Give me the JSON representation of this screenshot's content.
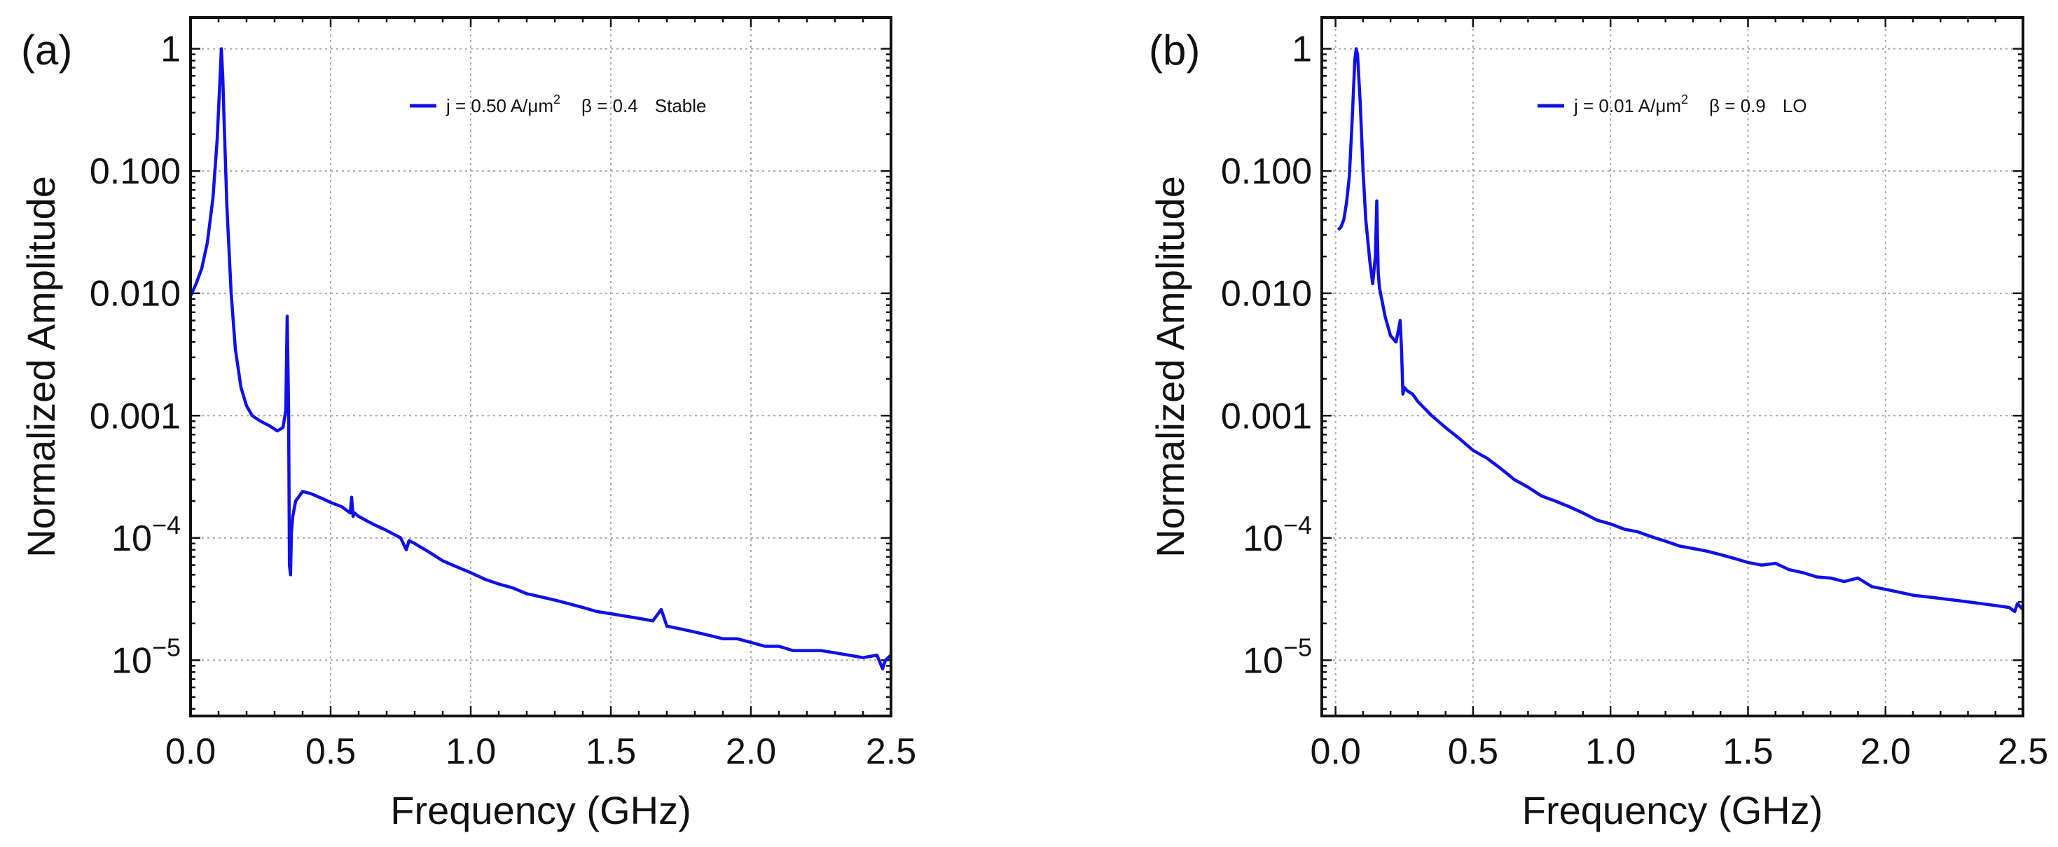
{
  "chart_data": [
    {
      "type": "line",
      "panel_label": "(a)",
      "xlabel": "Frequency (GHz)",
      "ylabel": "Normalized Amplitude",
      "xlim": [
        0,
        2.5
      ],
      "ylim": [
        3.5e-06,
        1.8
      ],
      "yscale": "log",
      "grid": true,
      "xticks": [
        0.0,
        0.5,
        1.0,
        1.5,
        2.0,
        2.5
      ],
      "xtick_labels": [
        "0.0",
        "0.5",
        "1.0",
        "1.5",
        "2.0",
        "2.5"
      ],
      "yticks": [
        1,
        0.1,
        0.01,
        0.001,
        0.0001,
        1e-05
      ],
      "ytick_labels": [
        "1",
        "0.100",
        "0.010",
        "0.001",
        "10^-4",
        "10^-5"
      ],
      "legend": {
        "position": "top-right",
        "label_main": "j = 0.50  A/μm",
        "label_sup": "2",
        "label_beta": "β = 0.4",
        "label_state": "Stable"
      },
      "series": [
        {
          "name": "j = 0.50 A/μm² β = 0.4 Stable",
          "color": "#1010e8",
          "x": [
            0.0,
            0.02,
            0.04,
            0.06,
            0.08,
            0.095,
            0.105,
            0.11,
            0.115,
            0.12,
            0.13,
            0.145,
            0.16,
            0.18,
            0.2,
            0.22,
            0.25,
            0.28,
            0.31,
            0.33,
            0.34,
            0.345,
            0.35,
            0.353,
            0.357,
            0.36,
            0.365,
            0.375,
            0.4,
            0.43,
            0.47,
            0.5,
            0.54,
            0.57,
            0.575,
            0.58,
            0.585,
            0.6,
            0.65,
            0.7,
            0.75,
            0.77,
            0.78,
            0.8,
            0.85,
            0.9,
            0.95,
            1.0,
            1.05,
            1.1,
            1.15,
            1.2,
            1.25,
            1.3,
            1.35,
            1.4,
            1.45,
            1.5,
            1.55,
            1.6,
            1.65,
            1.68,
            1.7,
            1.75,
            1.8,
            1.85,
            1.9,
            1.95,
            2.0,
            2.05,
            2.1,
            2.15,
            2.2,
            2.25,
            2.3,
            2.35,
            2.4,
            2.45,
            2.47,
            2.48,
            2.5
          ],
          "y": [
            0.0095,
            0.012,
            0.016,
            0.026,
            0.06,
            0.18,
            0.55,
            1.0,
            0.6,
            0.25,
            0.05,
            0.01,
            0.0035,
            0.0017,
            0.0012,
            0.001,
            0.0009,
            0.00083,
            0.00075,
            0.0008,
            0.0011,
            0.0065,
            0.0011,
            6e-05,
            5e-05,
            0.00011,
            0.00015,
            0.0002,
            0.00024,
            0.00023,
            0.00021,
            0.000195,
            0.00018,
            0.00016,
            0.000215,
            0.00015,
            0.00016,
            0.00015,
            0.00013,
            0.000115,
            0.0001,
            8e-05,
            9.5e-05,
            9e-05,
            7.7e-05,
            6.5e-05,
            5.8e-05,
            5.2e-05,
            4.6e-05,
            4.2e-05,
            3.9e-05,
            3.5e-05,
            3.3e-05,
            3.1e-05,
            2.9e-05,
            2.7e-05,
            2.5e-05,
            2.4e-05,
            2.3e-05,
            2.2e-05,
            2.1e-05,
            2.6e-05,
            1.9e-05,
            1.8e-05,
            1.7e-05,
            1.6e-05,
            1.5e-05,
            1.5e-05,
            1.4e-05,
            1.3e-05,
            1.3e-05,
            1.2e-05,
            1.2e-05,
            1.2e-05,
            1.15e-05,
            1.1e-05,
            1.05e-05,
            1.1e-05,
            8.5e-06,
            1e-05,
            1.1e-05
          ]
        }
      ]
    },
    {
      "type": "line",
      "panel_label": "(b)",
      "xlabel": "Frequency (GHz)",
      "ylabel": "Normalized Amplitude",
      "xlim": [
        -0.05,
        2.5
      ],
      "ylim": [
        3.5e-06,
        1.8
      ],
      "yscale": "log",
      "grid": true,
      "xticks": [
        0.0,
        0.5,
        1.0,
        1.5,
        2.0,
        2.5
      ],
      "xtick_labels": [
        "0.0",
        "0.5",
        "1.0",
        "1.5",
        "2.0",
        "2.5"
      ],
      "yticks": [
        1,
        0.1,
        0.01,
        0.001,
        0.0001,
        1e-05
      ],
      "ytick_labels": [
        "1",
        "0.100",
        "0.010",
        "0.001",
        "10^-4",
        "10^-5"
      ],
      "legend": {
        "position": "top-right",
        "label_main": "j = 0.01  A/μm",
        "label_sup": "2",
        "label_beta": "β = 0.9",
        "label_state": "LO"
      },
      "series": [
        {
          "name": "j = 0.01 A/μm² β = 0.9 LO",
          "color": "#1010e8",
          "x": [
            0.01,
            0.02,
            0.03,
            0.04,
            0.05,
            0.06,
            0.07,
            0.075,
            0.08,
            0.09,
            0.1,
            0.11,
            0.125,
            0.135,
            0.145,
            0.15,
            0.155,
            0.16,
            0.17,
            0.18,
            0.2,
            0.22,
            0.23,
            0.235,
            0.24,
            0.245,
            0.25,
            0.26,
            0.28,
            0.3,
            0.35,
            0.4,
            0.45,
            0.5,
            0.55,
            0.6,
            0.65,
            0.7,
            0.75,
            0.8,
            0.85,
            0.9,
            0.95,
            1.0,
            1.05,
            1.1,
            1.15,
            1.2,
            1.25,
            1.3,
            1.35,
            1.4,
            1.45,
            1.5,
            1.55,
            1.6,
            1.65,
            1.7,
            1.75,
            1.8,
            1.85,
            1.9,
            1.95,
            2.0,
            2.05,
            2.1,
            2.15,
            2.2,
            2.25,
            2.3,
            2.35,
            2.4,
            2.45,
            2.47,
            2.48,
            2.5
          ],
          "y": [
            0.033,
            0.035,
            0.04,
            0.055,
            0.09,
            0.25,
            0.8,
            1.0,
            0.9,
            0.35,
            0.1,
            0.04,
            0.018,
            0.012,
            0.02,
            0.057,
            0.015,
            0.011,
            0.0085,
            0.0065,
            0.0045,
            0.004,
            0.0052,
            0.006,
            0.0035,
            0.0015,
            0.0017,
            0.0016,
            0.0015,
            0.0013,
            0.001,
            0.0008,
            0.00065,
            0.00052,
            0.00045,
            0.00037,
            0.0003,
            0.00026,
            0.00022,
            0.0002,
            0.00018,
            0.00016,
            0.00014,
            0.00013,
            0.000118,
            0.000112,
            0.000102,
            9.4e-05,
            8.6e-05,
            8.2e-05,
            7.8e-05,
            7.3e-05,
            6.8e-05,
            6.3e-05,
            6e-05,
            6.2e-05,
            5.5e-05,
            5.2e-05,
            4.8e-05,
            4.7e-05,
            4.4e-05,
            4.7e-05,
            4e-05,
            3.8e-05,
            3.6e-05,
            3.4e-05,
            3.3e-05,
            3.2e-05,
            3.1e-05,
            3e-05,
            2.9e-05,
            2.8e-05,
            2.7e-05,
            2.5e-05,
            2.9e-05,
            2.6e-05
          ]
        }
      ]
    }
  ]
}
